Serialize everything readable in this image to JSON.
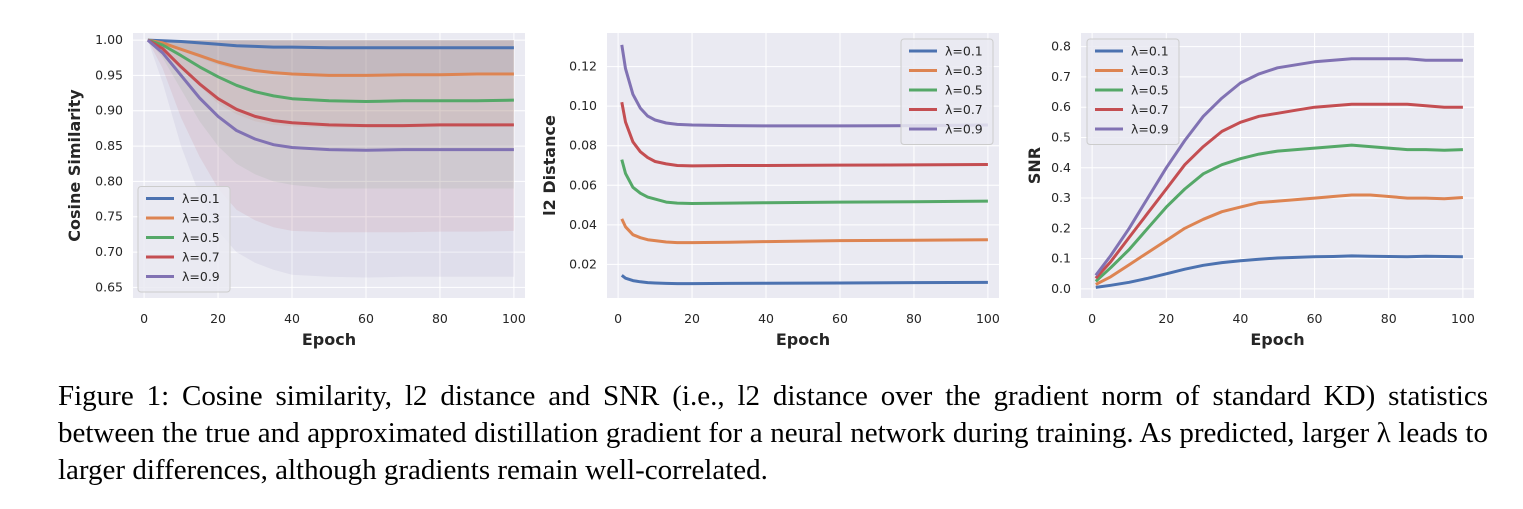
{
  "figure": {
    "caption": "Figure 1: Cosine similarity, l2 distance and SNR (i.e., l2 distance over the gradient norm of standard KD) statistics between the true and approximated distillation gradient for a neural network during training. As predicted, larger λ leads to larger differences, although gradients remain well-correlated."
  },
  "colors": {
    "panel_bg": "#eaeaf2",
    "grid": "#ffffff",
    "series": [
      "#4c72b0",
      "#dd8452",
      "#55a868",
      "#c44e52",
      "#8172b3"
    ]
  },
  "chart_data": [
    {
      "type": "line",
      "title": "",
      "xlabel": "Epoch",
      "ylabel": "Cosine Similarity",
      "xlim": [
        -3,
        103
      ],
      "ylim": [
        0.635,
        1.01
      ],
      "xticks": [
        0,
        20,
        40,
        60,
        80,
        100
      ],
      "yticks": [
        0.65,
        0.7,
        0.75,
        0.8,
        0.85,
        0.9,
        0.95,
        1.0
      ],
      "ytick_labels": [
        "0.65",
        "0.70",
        "0.75",
        "0.80",
        "0.85",
        "0.90",
        "0.95",
        "1.00"
      ],
      "grid": true,
      "legend": "lower-left",
      "shaded_band": true,
      "series": [
        {
          "name": "λ=0.1",
          "x": [
            1,
            5,
            10,
            15,
            20,
            25,
            30,
            35,
            40,
            50,
            60,
            70,
            80,
            90,
            100
          ],
          "values": [
            1.0,
            0.999,
            0.998,
            0.996,
            0.994,
            0.992,
            0.991,
            0.99,
            0.99,
            0.989,
            0.989,
            0.989,
            0.989,
            0.989,
            0.989
          ],
          "band_low": [
            1.0,
            0.995,
            0.985,
            0.975,
            0.965,
            0.958,
            0.955,
            0.953,
            0.952,
            0.952,
            0.952,
            0.952,
            0.952,
            0.952,
            0.952
          ]
        },
        {
          "name": "λ=0.3",
          "x": [
            1,
            5,
            10,
            15,
            20,
            25,
            30,
            35,
            40,
            50,
            60,
            70,
            80,
            90,
            100
          ],
          "values": [
            1.0,
            0.996,
            0.987,
            0.978,
            0.969,
            0.962,
            0.957,
            0.954,
            0.952,
            0.95,
            0.95,
            0.951,
            0.951,
            0.952,
            0.952
          ],
          "band_low": [
            1.0,
            0.985,
            0.96,
            0.935,
            0.91,
            0.895,
            0.885,
            0.88,
            0.878,
            0.876,
            0.876,
            0.876,
            0.877,
            0.877,
            0.878
          ]
        },
        {
          "name": "λ=0.5",
          "x": [
            1,
            5,
            10,
            15,
            20,
            25,
            30,
            35,
            40,
            50,
            60,
            70,
            80,
            90,
            100
          ],
          "values": [
            1.0,
            0.993,
            0.978,
            0.962,
            0.948,
            0.936,
            0.927,
            0.921,
            0.917,
            0.914,
            0.913,
            0.914,
            0.914,
            0.914,
            0.915
          ],
          "band_low": [
            1.0,
            0.975,
            0.93,
            0.885,
            0.85,
            0.825,
            0.81,
            0.8,
            0.795,
            0.79,
            0.79,
            0.79,
            0.79,
            0.79,
            0.79
          ]
        },
        {
          "name": "λ=0.7",
          "x": [
            1,
            5,
            10,
            15,
            20,
            25,
            30,
            35,
            40,
            50,
            60,
            70,
            80,
            90,
            100
          ],
          "values": [
            1.0,
            0.988,
            0.962,
            0.938,
            0.917,
            0.902,
            0.892,
            0.886,
            0.883,
            0.88,
            0.879,
            0.879,
            0.88,
            0.88,
            0.88
          ],
          "band_low": [
            1.0,
            0.96,
            0.89,
            0.835,
            0.79,
            0.76,
            0.745,
            0.735,
            0.73,
            0.728,
            0.728,
            0.728,
            0.729,
            0.729,
            0.73
          ]
        },
        {
          "name": "λ=0.9",
          "x": [
            1,
            5,
            10,
            15,
            20,
            25,
            30,
            35,
            40,
            50,
            60,
            70,
            80,
            90,
            100
          ],
          "values": [
            1.0,
            0.982,
            0.95,
            0.918,
            0.892,
            0.872,
            0.86,
            0.852,
            0.848,
            0.845,
            0.844,
            0.845,
            0.845,
            0.845,
            0.845
          ],
          "band_low": [
            1.0,
            0.94,
            0.85,
            0.78,
            0.73,
            0.7,
            0.685,
            0.675,
            0.668,
            0.665,
            0.664,
            0.665,
            0.665,
            0.665,
            0.665
          ]
        }
      ]
    },
    {
      "type": "line",
      "title": "",
      "xlabel": "Epoch",
      "ylabel": "l2 Distance",
      "xlim": [
        -3,
        103
      ],
      "ylim": [
        0.003,
        0.137
      ],
      "xticks": [
        0,
        20,
        40,
        60,
        80,
        100
      ],
      "yticks": [
        0.02,
        0.04,
        0.06,
        0.08,
        0.1,
        0.12
      ],
      "ytick_labels": [
        "0.02",
        "0.04",
        "0.06",
        "0.08",
        "0.10",
        "0.12"
      ],
      "grid": true,
      "legend": "upper-right",
      "series": [
        {
          "name": "λ=0.1",
          "x": [
            1,
            2,
            4,
            6,
            8,
            10,
            13,
            16,
            20,
            30,
            40,
            60,
            80,
            100
          ],
          "values": [
            0.0145,
            0.013,
            0.0118,
            0.0112,
            0.0108,
            0.0106,
            0.0104,
            0.0103,
            0.0103,
            0.0104,
            0.0105,
            0.0106,
            0.0108,
            0.0109
          ]
        },
        {
          "name": "λ=0.3",
          "x": [
            1,
            2,
            4,
            6,
            8,
            10,
            13,
            16,
            20,
            30,
            40,
            60,
            80,
            100
          ],
          "values": [
            0.043,
            0.039,
            0.035,
            0.0335,
            0.0325,
            0.032,
            0.0313,
            0.031,
            0.031,
            0.0312,
            0.0315,
            0.032,
            0.0322,
            0.0325
          ]
        },
        {
          "name": "λ=0.5",
          "x": [
            1,
            2,
            4,
            6,
            8,
            10,
            13,
            16,
            20,
            30,
            40,
            60,
            80,
            100
          ],
          "values": [
            0.073,
            0.066,
            0.059,
            0.056,
            0.054,
            0.053,
            0.0515,
            0.051,
            0.0508,
            0.051,
            0.0512,
            0.0515,
            0.0517,
            0.052
          ]
        },
        {
          "name": "λ=0.7",
          "x": [
            1,
            2,
            4,
            6,
            8,
            10,
            13,
            16,
            20,
            30,
            40,
            60,
            80,
            100
          ],
          "values": [
            0.102,
            0.092,
            0.082,
            0.077,
            0.074,
            0.072,
            0.0708,
            0.07,
            0.0698,
            0.07,
            0.07,
            0.0702,
            0.0703,
            0.0705
          ]
        },
        {
          "name": "λ=0.9",
          "x": [
            1,
            2,
            4,
            6,
            8,
            10,
            13,
            16,
            20,
            30,
            40,
            60,
            80,
            100
          ],
          "values": [
            0.131,
            0.119,
            0.106,
            0.099,
            0.095,
            0.093,
            0.0915,
            0.0908,
            0.0905,
            0.0902,
            0.09,
            0.09,
            0.0902,
            0.0905
          ]
        }
      ]
    },
    {
      "type": "line",
      "title": "",
      "xlabel": "Epoch",
      "ylabel": "SNR",
      "xlim": [
        -3,
        103
      ],
      "ylim": [
        -0.03,
        0.845
      ],
      "xticks": [
        0,
        20,
        40,
        60,
        80,
        100
      ],
      "yticks": [
        0.0,
        0.1,
        0.2,
        0.3,
        0.4,
        0.5,
        0.6,
        0.7,
        0.8
      ],
      "ytick_labels": [
        "0.0",
        "0.1",
        "0.2",
        "0.3",
        "0.4",
        "0.5",
        "0.6",
        "0.7",
        "0.8"
      ],
      "grid": true,
      "legend": "upper-left",
      "series": [
        {
          "name": "λ=0.1",
          "x": [
            1,
            5,
            10,
            15,
            20,
            25,
            30,
            35,
            40,
            45,
            50,
            55,
            60,
            65,
            70,
            75,
            80,
            85,
            90,
            95,
            100
          ],
          "values": [
            0.005,
            0.012,
            0.022,
            0.035,
            0.05,
            0.065,
            0.078,
            0.087,
            0.093,
            0.098,
            0.102,
            0.104,
            0.106,
            0.107,
            0.109,
            0.108,
            0.107,
            0.106,
            0.108,
            0.107,
            0.106
          ]
        },
        {
          "name": "λ=0.3",
          "x": [
            1,
            5,
            10,
            15,
            20,
            25,
            30,
            35,
            40,
            45,
            50,
            55,
            60,
            65,
            70,
            75,
            80,
            85,
            90,
            95,
            100
          ],
          "values": [
            0.015,
            0.04,
            0.08,
            0.12,
            0.16,
            0.2,
            0.23,
            0.255,
            0.27,
            0.285,
            0.29,
            0.295,
            0.3,
            0.305,
            0.31,
            0.31,
            0.305,
            0.3,
            0.3,
            0.298,
            0.302
          ]
        },
        {
          "name": "λ=0.5",
          "x": [
            1,
            5,
            10,
            15,
            20,
            25,
            30,
            35,
            40,
            45,
            50,
            55,
            60,
            65,
            70,
            75,
            80,
            85,
            90,
            95,
            100
          ],
          "values": [
            0.025,
            0.07,
            0.13,
            0.2,
            0.27,
            0.33,
            0.38,
            0.41,
            0.43,
            0.445,
            0.455,
            0.46,
            0.465,
            0.47,
            0.475,
            0.47,
            0.465,
            0.46,
            0.46,
            0.458,
            0.46
          ]
        },
        {
          "name": "λ=0.7",
          "x": [
            1,
            5,
            10,
            15,
            20,
            25,
            30,
            35,
            40,
            45,
            50,
            55,
            60,
            65,
            70,
            75,
            80,
            85,
            90,
            95,
            100
          ],
          "values": [
            0.035,
            0.09,
            0.17,
            0.25,
            0.33,
            0.41,
            0.47,
            0.52,
            0.55,
            0.57,
            0.58,
            0.59,
            0.6,
            0.605,
            0.61,
            0.61,
            0.61,
            0.61,
            0.605,
            0.6,
            0.6
          ]
        },
        {
          "name": "λ=0.9",
          "x": [
            1,
            5,
            10,
            15,
            20,
            25,
            30,
            35,
            40,
            45,
            50,
            55,
            60,
            65,
            70,
            75,
            80,
            85,
            90,
            95,
            100
          ],
          "values": [
            0.045,
            0.11,
            0.2,
            0.3,
            0.4,
            0.49,
            0.57,
            0.63,
            0.68,
            0.71,
            0.73,
            0.74,
            0.75,
            0.755,
            0.76,
            0.76,
            0.76,
            0.76,
            0.755,
            0.755,
            0.755
          ]
        }
      ]
    }
  ]
}
